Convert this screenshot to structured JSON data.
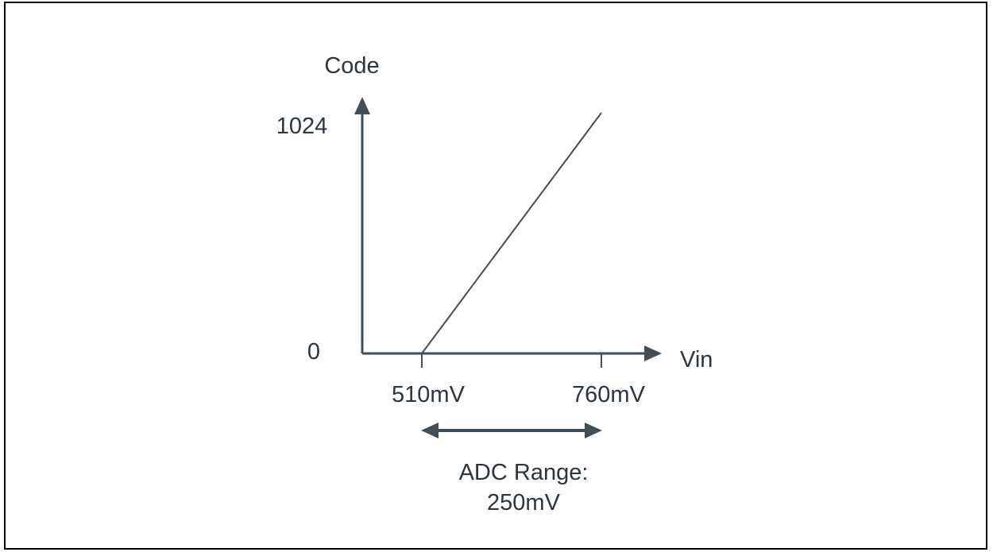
{
  "labels": {
    "y_axis": "Code",
    "x_axis": "Vin",
    "y_max": "1024",
    "y_min": "0",
    "x_start": "510mV",
    "x_end": "760mV",
    "range_line1": "ADC Range:",
    "range_line2": "250mV"
  },
  "colors": {
    "axis": "#414d57",
    "line": "#414d57",
    "text": "#2a3540",
    "border": "#000000"
  }
}
